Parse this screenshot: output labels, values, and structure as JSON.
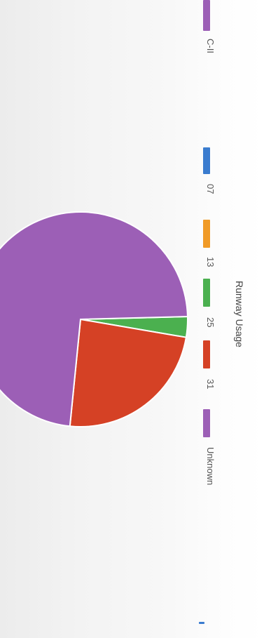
{
  "top_legend": {
    "label": "C-II",
    "color": "#9c5fb6"
  },
  "chart_data": {
    "type": "pie",
    "title": "Runway Usage",
    "legend_placement": "right",
    "series": [
      {
        "name": "07",
        "value": 0.0,
        "color": "#3a7ccf"
      },
      {
        "name": "13",
        "value": 0.0,
        "color": "#f09a26"
      },
      {
        "name": "25",
        "value": 3.1,
        "color": "#4bb04f"
      },
      {
        "name": "31",
        "value": 23.9,
        "color": "#d54125"
      },
      {
        "name": "Unknown",
        "value": 73.0,
        "color": "#9c5fb6"
      }
    ]
  },
  "bottom_fragment_color": "#3a7ccf"
}
